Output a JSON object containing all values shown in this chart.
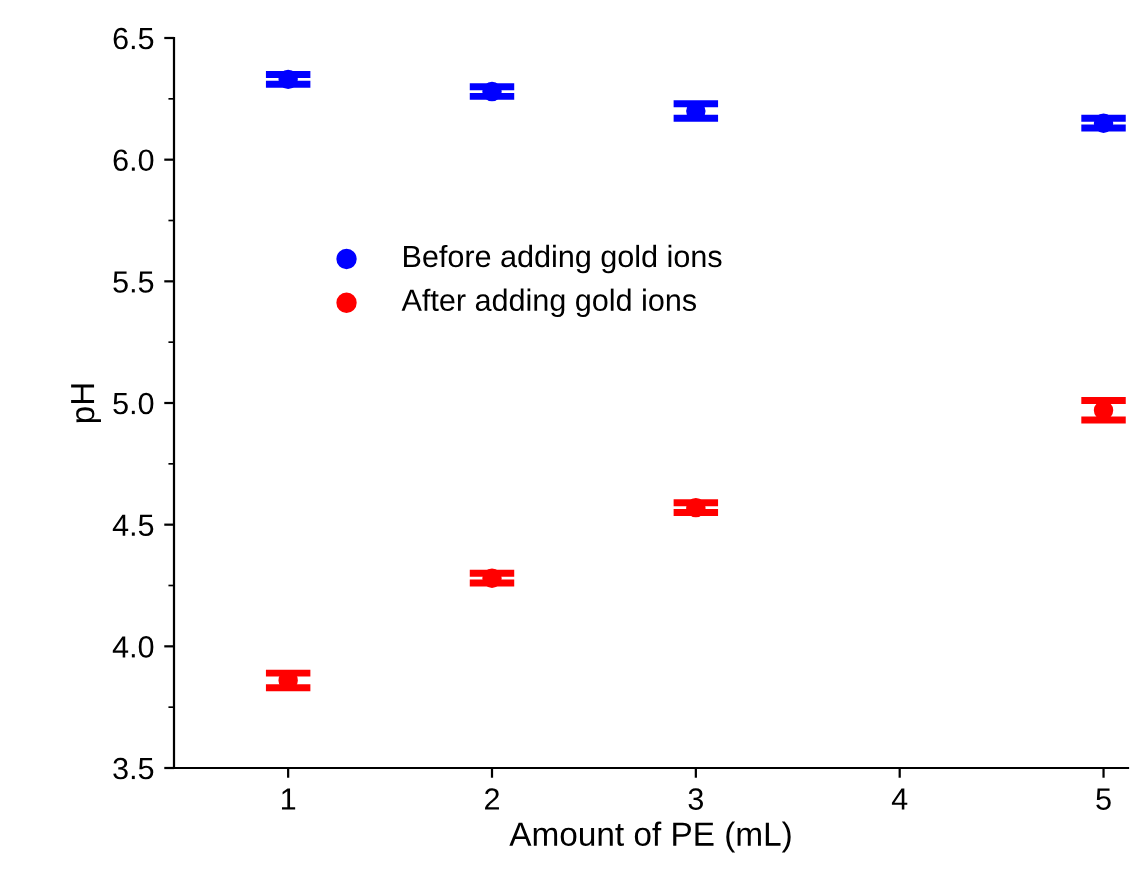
{
  "chart_data": {
    "type": "scatter",
    "xlabel": "Amount of PE (mL)",
    "ylabel": "pH",
    "x": [
      1,
      2,
      3,
      5
    ],
    "series": [
      {
        "name": "Before adding gold ions",
        "color": "#0000ff",
        "values": [
          6.33,
          6.28,
          6.2,
          6.15
        ],
        "errors": [
          0.02,
          0.02,
          0.03,
          0.02
        ]
      },
      {
        "name": "After adding gold ions",
        "color": "#ff0000",
        "values": [
          3.86,
          4.28,
          4.57,
          4.97
        ],
        "errors": [
          0.03,
          0.02,
          0.02,
          0.04
        ]
      }
    ],
    "xlim": [
      0.44,
      5.12
    ],
    "xticks": [
      1,
      2,
      3,
      4,
      5
    ],
    "ylim": [
      3.5,
      6.5
    ],
    "yticks": [
      3.5,
      {
        "value": 4,
        "label": "4.0"
      },
      4.5,
      {
        "value": 5,
        "label": "5.0"
      },
      5.5,
      {
        "value": 6,
        "label": "6.0"
      },
      6.5
    ],
    "marker": "circle",
    "legend": "center",
    "grid": false
  }
}
